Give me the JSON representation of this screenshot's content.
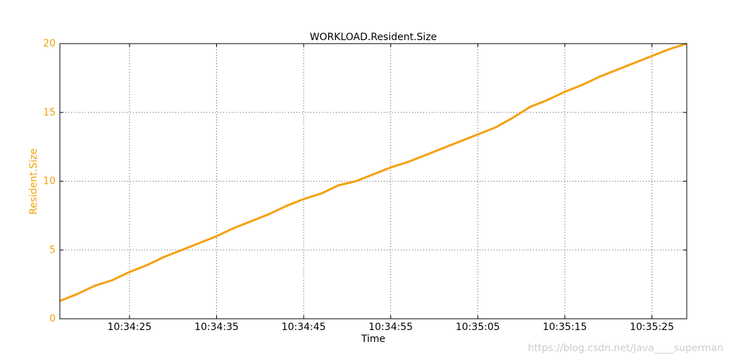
{
  "chart_data": {
    "type": "line",
    "title": "WORKLOAD.Resident.Size",
    "x_label": "Time",
    "y_label": "Resident.Size",
    "axis_color": "#f0a30a",
    "x": [
      "10:34:17",
      "10:34:19",
      "10:34:21",
      "10:34:23",
      "10:34:25",
      "10:34:27",
      "10:34:29",
      "10:34:31",
      "10:34:33",
      "10:34:35",
      "10:34:37",
      "10:34:39",
      "10:34:41",
      "10:34:43",
      "10:34:45",
      "10:34:47",
      "10:34:49",
      "10:34:51",
      "10:34:53",
      "10:34:55",
      "10:34:57",
      "10:34:59",
      "10:35:01",
      "10:35:03",
      "10:35:05",
      "10:35:07",
      "10:35:09",
      "10:35:11",
      "10:35:13",
      "10:35:15",
      "10:35:17",
      "10:35:19",
      "10:35:21",
      "10:35:23",
      "10:35:25",
      "10:35:27",
      "10:35:29"
    ],
    "series": [
      {
        "name": "Resident.Size",
        "color": "#f5a00d",
        "values": [
          1.3,
          1.8,
          2.4,
          2.8,
          3.4,
          3.9,
          4.5,
          5.0,
          5.5,
          6.0,
          6.6,
          7.1,
          7.6,
          8.2,
          8.7,
          9.1,
          9.7,
          10.0,
          10.5,
          11.0,
          11.4,
          11.9,
          12.4,
          12.9,
          13.4,
          13.9,
          14.6,
          15.4,
          15.9,
          16.5,
          17.0,
          17.6,
          18.1,
          18.6,
          19.1,
          19.6,
          20.0
        ]
      }
    ],
    "xlim": [
      "10:34:17",
      "10:35:29"
    ],
    "xticks": [
      "10:34:25",
      "10:34:35",
      "10:34:45",
      "10:34:55",
      "10:35:05",
      "10:35:15",
      "10:35:25"
    ],
    "ylim": [
      0,
      20
    ],
    "yticks": [
      0,
      5,
      10,
      15,
      20
    ],
    "grid": true,
    "watermark": "https://blog.csdn.net/Java____superman"
  }
}
